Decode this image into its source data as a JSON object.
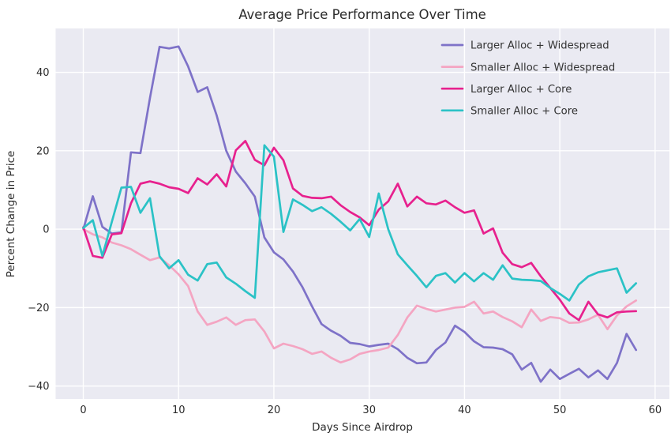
{
  "figure": {
    "title": "Average Price Performance Over Time",
    "xlabel": "Days Since Airdrop",
    "ylabel": "Percent Change in Price"
  },
  "chart_data": {
    "type": "line",
    "title": "Average Price Performance Over Time",
    "xlabel": "Days Since Airdrop",
    "ylabel": "Percent Change in Price",
    "grid": true,
    "legend_position": "upper right",
    "plot_bg_color": "#eaeaf2",
    "grid_color": "#ffffff",
    "text_color": "#2b2b2b",
    "xticks": [
      0,
      10,
      20,
      30,
      40,
      50,
      60
    ],
    "yticks": [
      -40,
      -20,
      0,
      20,
      40
    ],
    "xlim": [
      -2.9,
      61.5
    ],
    "ylim": [
      -43.3,
      51.2
    ],
    "x": [
      0,
      1,
      2,
      3,
      4,
      5,
      6,
      7,
      8,
      9,
      10,
      11,
      12,
      13,
      14,
      15,
      16,
      17,
      18,
      19,
      20,
      21,
      22,
      23,
      24,
      25,
      26,
      27,
      28,
      29,
      30,
      31,
      32,
      33,
      34,
      35,
      36,
      37,
      38,
      39,
      40,
      41,
      42,
      43,
      44,
      45,
      46,
      47,
      48,
      49,
      50,
      51,
      52,
      53,
      54,
      55,
      56,
      57,
      58
    ],
    "series": [
      {
        "name": "Larger Alloc + Widespread",
        "color": "#7e72c8",
        "values": [
          0.0,
          8.4,
          0.6,
          -1.1,
          -0.8,
          19.6,
          19.4,
          33.5,
          46.5,
          46.1,
          46.6,
          41.5,
          35.0,
          36.2,
          29.0,
          20.0,
          14.7,
          11.7,
          8.3,
          -2.1,
          -5.9,
          -7.7,
          -10.8,
          -14.8,
          -19.7,
          -24.2,
          -25.9,
          -27.2,
          -29.0,
          -29.3,
          -29.9,
          -29.5,
          -29.2,
          -30.6,
          -32.8,
          -34.2,
          -34.0,
          -30.8,
          -28.9,
          -24.6,
          -26.2,
          -28.6,
          -30.1,
          -30.2,
          -30.6,
          -31.9,
          -35.8,
          -34.1,
          -38.9,
          -35.8,
          -38.2,
          -36.9,
          -35.6,
          -37.8,
          -36.0,
          -38.2,
          -34.1,
          -26.7,
          -30.8
        ]
      },
      {
        "name": "Smaller Alloc + Widespread",
        "color": "#f4a5c2",
        "values": [
          0.0,
          -1.3,
          -2.1,
          -3.4,
          -4.1,
          -5.1,
          -6.5,
          -7.9,
          -7.2,
          -9.2,
          -11.5,
          -14.5,
          -21.0,
          -24.4,
          -23.6,
          -22.5,
          -24.4,
          -23.2,
          -23.0,
          -26.1,
          -30.4,
          -29.2,
          -29.8,
          -30.6,
          -31.8,
          -31.2,
          -32.8,
          -34.0,
          -33.2,
          -31.8,
          -31.2,
          -30.8,
          -30.2,
          -27.0,
          -22.5,
          -19.5,
          -20.3,
          -21.0,
          -20.5,
          -20.0,
          -19.8,
          -18.5,
          -21.5,
          -21.0,
          -22.4,
          -23.5,
          -25.0,
          -20.5,
          -23.4,
          -22.4,
          -22.7,
          -23.9,
          -23.8,
          -23.0,
          -21.8,
          -25.5,
          -22.0,
          -19.7,
          -18.2
        ]
      },
      {
        "name": "Larger Alloc + Core",
        "color": "#e7218e",
        "values": [
          0.5,
          -6.8,
          -7.3,
          -1.3,
          -1.0,
          6.6,
          11.6,
          12.2,
          11.6,
          10.7,
          10.3,
          9.2,
          13.0,
          11.4,
          14.0,
          10.9,
          20.1,
          22.5,
          17.7,
          16.3,
          20.8,
          17.6,
          10.4,
          8.5,
          8.0,
          7.9,
          8.3,
          6.1,
          4.4,
          3.0,
          1.0,
          5.0,
          7.1,
          11.6,
          5.8,
          8.3,
          6.6,
          6.3,
          7.3,
          5.6,
          4.2,
          4.8,
          -1.1,
          0.2,
          -6.0,
          -8.9,
          -9.7,
          -8.6,
          -12.0,
          -15.0,
          -18.0,
          -21.5,
          -23.2,
          -18.5,
          -21.7,
          -22.5,
          -21.2,
          -21.0,
          -20.9
        ]
      },
      {
        "name": "Smaller Alloc + Core",
        "color": "#2bc2c6",
        "values": [
          0.3,
          2.3,
          -6.8,
          1.9,
          10.6,
          10.8,
          4.2,
          7.9,
          -6.9,
          -10.0,
          -7.9,
          -11.6,
          -13.1,
          -8.9,
          -8.5,
          -12.3,
          -13.9,
          -15.8,
          -17.5,
          21.4,
          18.5,
          -0.7,
          7.6,
          6.2,
          4.6,
          5.6,
          3.9,
          1.9,
          -0.3,
          2.6,
          -2.0,
          9.1,
          0.0,
          -6.4,
          -9.2,
          -11.9,
          -14.8,
          -11.9,
          -11.2,
          -13.6,
          -11.2,
          -13.3,
          -11.2,
          -12.9,
          -9.2,
          -12.6,
          -12.9,
          -13.0,
          -13.2,
          -15.0,
          -16.5,
          -18.2,
          -14.1,
          -12.0,
          -11.0,
          -10.5,
          -10.0,
          -16.2,
          -13.8
        ]
      }
    ]
  }
}
